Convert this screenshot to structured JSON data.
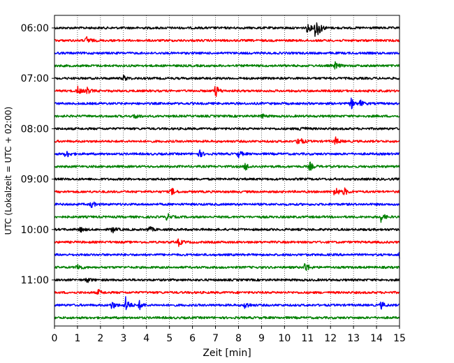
{
  "chart_data": {
    "type": "line",
    "xlabel": "Zeit  [min]",
    "ylabel": "UTC (Lokalzeit = UTC + 02:00)",
    "xlim": [
      0,
      15
    ],
    "x_ticks": [
      "0",
      "1",
      "2",
      "3",
      "4",
      "5",
      "6",
      "7",
      "8",
      "9",
      "10",
      "11",
      "12",
      "13",
      "14",
      "15"
    ],
    "y_ticks": [
      {
        "label": "06:00",
        "trace": 0
      },
      {
        "label": "07:00",
        "trace": 4
      },
      {
        "label": "08:00",
        "trace": 8
      },
      {
        "label": "09:00",
        "trace": 12
      },
      {
        "label": "10:00",
        "trace": 16
      },
      {
        "label": "11:00",
        "trace": 20
      }
    ],
    "trace_minutes": 15,
    "grid": {
      "x": true,
      "y": false,
      "style": "dotted"
    },
    "colors": [
      "#000000",
      "#ff0000",
      "#0000ff",
      "#008000"
    ],
    "traces": [
      {
        "start": "06:00",
        "events": [
          [
            11.0,
            7
          ],
          [
            11.35,
            16
          ],
          [
            11.5,
            5
          ]
        ]
      },
      {
        "start": "06:15",
        "events": [
          [
            1.4,
            6
          ]
        ]
      },
      {
        "start": "06:30",
        "events": []
      },
      {
        "start": "06:45",
        "events": [
          [
            12.2,
            5
          ]
        ]
      },
      {
        "start": "07:00",
        "events": [
          [
            3.0,
            4
          ]
        ]
      },
      {
        "start": "07:15",
        "events": [
          [
            1.0,
            6
          ],
          [
            1.4,
            5
          ],
          [
            7.0,
            9
          ]
        ]
      },
      {
        "start": "07:30",
        "events": [
          [
            12.9,
            7
          ],
          [
            13.3,
            4
          ]
        ]
      },
      {
        "start": "07:45",
        "events": [
          [
            3.5,
            4
          ],
          [
            9.0,
            3
          ]
        ]
      },
      {
        "start": "08:00",
        "events": [
          [
            10.7,
            5
          ]
        ]
      },
      {
        "start": "08:15",
        "events": [
          [
            10.6,
            9
          ],
          [
            12.2,
            6
          ]
        ]
      },
      {
        "start": "08:30",
        "events": [
          [
            0.5,
            6
          ],
          [
            6.3,
            5
          ],
          [
            8.0,
            5
          ]
        ]
      },
      {
        "start": "08:45",
        "events": [
          [
            8.3,
            6
          ],
          [
            11.1,
            6
          ]
        ]
      },
      {
        "start": "09:00",
        "events": []
      },
      {
        "start": "09:15",
        "events": [
          [
            5.1,
            5
          ],
          [
            12.2,
            8
          ],
          [
            12.6,
            5
          ],
          [
            15.0,
            4
          ]
        ]
      },
      {
        "start": "09:30",
        "events": [
          [
            1.6,
            5
          ]
        ]
      },
      {
        "start": "09:45",
        "events": [
          [
            4.9,
            5
          ],
          [
            14.2,
            7
          ]
        ]
      },
      {
        "start": "10:00",
        "events": [
          [
            1.1,
            4
          ],
          [
            2.5,
            5
          ],
          [
            4.1,
            5
          ]
        ]
      },
      {
        "start": "10:15",
        "events": [
          [
            5.4,
            5
          ]
        ]
      },
      {
        "start": "10:30",
        "events": [
          [
            15.0,
            5
          ]
        ]
      },
      {
        "start": "10:45",
        "events": [
          [
            1.0,
            6
          ],
          [
            10.9,
            8
          ]
        ]
      },
      {
        "start": "11:00",
        "events": [
          [
            1.4,
            4
          ]
        ]
      },
      {
        "start": "11:15",
        "events": [
          [
            1.9,
            4
          ]
        ]
      },
      {
        "start": "11:30",
        "events": [
          [
            2.5,
            6
          ],
          [
            3.1,
            12
          ],
          [
            3.7,
            6
          ],
          [
            8.3,
            6
          ],
          [
            14.2,
            5
          ]
        ]
      },
      {
        "start": "11:45",
        "events": []
      }
    ]
  }
}
